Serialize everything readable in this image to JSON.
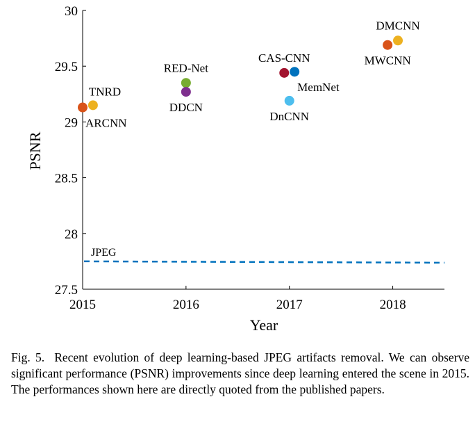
{
  "chart_data": {
    "type": "scatter",
    "xlabel": "Year",
    "ylabel": "PSNR",
    "xlim": [
      2015,
      2018.5
    ],
    "ylim": [
      27.5,
      30
    ],
    "xticks": [
      2015,
      2016,
      2017,
      2018
    ],
    "yticks": [
      27.5,
      28,
      28.5,
      29,
      29.5,
      30
    ],
    "xtick_labels": [
      "2015",
      "2016",
      "2017",
      "2018"
    ],
    "ytick_labels": [
      "27.5",
      "28",
      "28.5",
      "29",
      "29.5",
      "30"
    ],
    "grid": false,
    "points": [
      {
        "name": "ARCNN",
        "x": 2015.0,
        "y": 29.13,
        "color": "#D95319",
        "label_pos": "below-right"
      },
      {
        "name": "TNRD",
        "x": 2015.1,
        "y": 29.15,
        "color": "#EDB120",
        "label_pos": "above-right"
      },
      {
        "name": "RED-Net",
        "x": 2016.0,
        "y": 29.35,
        "color": "#77AC30",
        "label_pos": "above"
      },
      {
        "name": "DDCN",
        "x": 2016.0,
        "y": 29.27,
        "color": "#7E2F8E",
        "label_pos": "below"
      },
      {
        "name": "CAS-CNN",
        "x": 2016.95,
        "y": 29.44,
        "color": "#A2142F",
        "label_pos": "above"
      },
      {
        "name": "MemNet",
        "x": 2017.05,
        "y": 29.45,
        "color": "#0072BD",
        "label_pos": "below-right"
      },
      {
        "name": "DnCNN",
        "x": 2017.0,
        "y": 29.19,
        "color": "#4DBEEE",
        "label_pos": "below"
      },
      {
        "name": "MWCNN",
        "x": 2017.95,
        "y": 29.69,
        "color": "#D95319",
        "label_pos": "below"
      },
      {
        "name": "DMCNN",
        "x": 2018.05,
        "y": 29.73,
        "color": "#EDB120",
        "label_pos": "above"
      }
    ],
    "reference_lines": [
      {
        "name": "JPEG",
        "y": 27.75,
        "color": "#0072BD",
        "style": "dashed"
      }
    ]
  },
  "caption": {
    "figure_number": "Fig. 5.",
    "text": "Recent evolution of deep learning-based JPEG artifacts removal. We can observe significant performance (PSNR) improvements since deep learning entered the scene in 2015. The performances shown here are directly quoted from the published papers."
  }
}
